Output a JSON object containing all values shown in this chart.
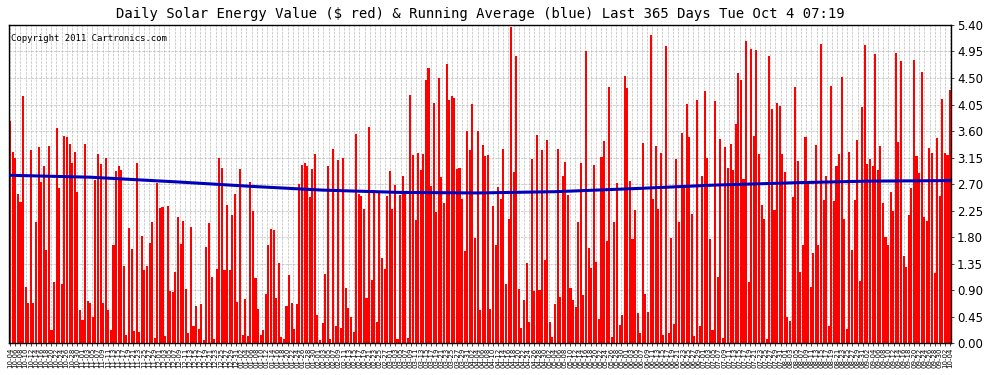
{
  "title": "Daily Solar Energy Value ($ red) & Running Average (blue) Last 365 Days Tue Oct 4 07:19",
  "copyright": "Copyright 2011 Cartronics.com",
  "bar_color": "#ff0000",
  "avg_line_color": "#0000bb",
  "background_color": "#ffffff",
  "grid_color": "#aaaaaa",
  "ylim": [
    0.0,
    5.4
  ],
  "yticks": [
    0.0,
    0.45,
    0.9,
    1.35,
    1.8,
    2.25,
    2.7,
    3.15,
    3.6,
    4.05,
    4.5,
    4.95,
    5.4
  ],
  "x_labels": [
    "10-04",
    "10-06",
    "10-08",
    "10-10",
    "10-12",
    "10-14",
    "10-16",
    "10-18",
    "10-20",
    "10-22",
    "10-24",
    "10-26",
    "10-28",
    "10-30",
    "11-01",
    "11-03",
    "11-05",
    "11-07",
    "11-09",
    "11-11",
    "11-13",
    "11-15",
    "11-17",
    "11-19",
    "11-21",
    "11-23",
    "11-25",
    "11-27",
    "11-29",
    "12-01",
    "12-03",
    "12-05",
    "12-07",
    "12-09",
    "12-11",
    "12-13",
    "12-15",
    "12-17",
    "12-19",
    "12-21",
    "12-23",
    "12-25",
    "12-27",
    "12-29",
    "12-31",
    "01-02",
    "01-04",
    "01-06",
    "01-08",
    "01-10",
    "01-12",
    "01-14",
    "01-16",
    "01-18",
    "01-20",
    "01-22",
    "01-24",
    "01-26",
    "01-28",
    "01-30",
    "02-01",
    "02-03",
    "02-05",
    "02-07",
    "02-09",
    "02-11",
    "02-13",
    "02-15",
    "02-17",
    "02-19",
    "02-21",
    "02-23",
    "02-25",
    "02-27",
    "03-01",
    "03-03",
    "03-05",
    "03-07",
    "03-09",
    "03-11",
    "03-13",
    "03-15",
    "03-17",
    "03-19",
    "03-21",
    "03-23",
    "03-25",
    "03-27",
    "03-29",
    "03-31",
    "04-02",
    "04-04",
    "04-06",
    "04-08",
    "04-10",
    "04-12",
    "04-14",
    "04-16",
    "04-18",
    "04-20",
    "04-22",
    "04-24",
    "04-26",
    "04-28",
    "04-30",
    "05-02",
    "05-04",
    "05-06",
    "05-08",
    "05-10",
    "05-12",
    "05-14",
    "05-16",
    "05-18",
    "05-20",
    "05-22",
    "05-24",
    "05-26",
    "05-28",
    "05-30",
    "06-01",
    "06-03",
    "06-05",
    "06-07",
    "06-09",
    "06-11",
    "06-13",
    "06-15",
    "06-17",
    "06-19",
    "06-21",
    "06-23",
    "06-25",
    "06-27",
    "06-29",
    "07-01",
    "07-03",
    "07-05",
    "07-07",
    "07-09",
    "07-11",
    "07-13",
    "07-15",
    "07-17",
    "07-19",
    "07-21",
    "07-23",
    "07-25",
    "07-27",
    "07-29",
    "07-31",
    "08-01",
    "08-03",
    "08-05",
    "08-07",
    "08-09",
    "08-11",
    "08-13",
    "08-15",
    "08-17",
    "08-19",
    "08-21",
    "08-23",
    "08-25",
    "08-27",
    "08-29",
    "08-31",
    "09-02",
    "09-04",
    "09-06",
    "09-08",
    "09-10",
    "09-12",
    "09-14",
    "09-16",
    "09-18",
    "09-20",
    "09-22",
    "09-24",
    "09-26",
    "09-28",
    "09-30",
    "10-02",
    "10-04"
  ],
  "n_days": 365,
  "avg_curve_points": [
    [
      0,
      2.85
    ],
    [
      30,
      2.82
    ],
    [
      60,
      2.75
    ],
    [
      90,
      2.67
    ],
    [
      120,
      2.6
    ],
    [
      150,
      2.56
    ],
    [
      180,
      2.55
    ],
    [
      210,
      2.57
    ],
    [
      240,
      2.62
    ],
    [
      270,
      2.68
    ],
    [
      300,
      2.72
    ],
    [
      330,
      2.75
    ],
    [
      364,
      2.76
    ]
  ]
}
